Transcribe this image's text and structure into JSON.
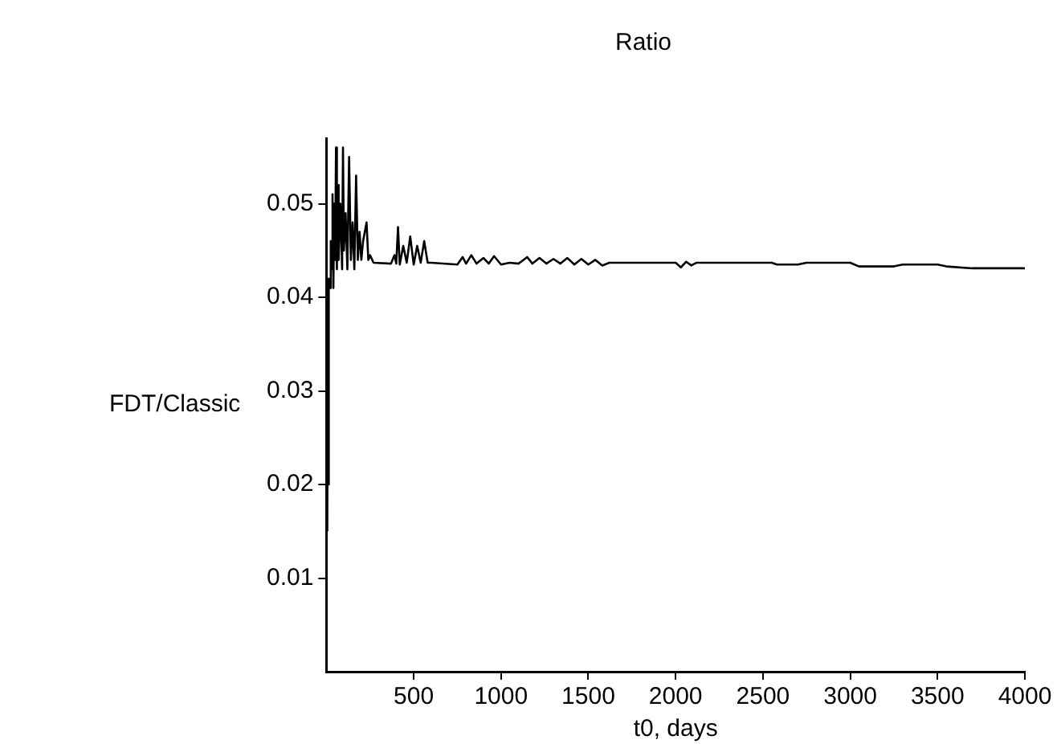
{
  "chart_data": {
    "type": "line",
    "title": "Ratio",
    "xlabel": "t0, days",
    "ylabel": "FDT/Classic",
    "xlim": [
      0,
      4000
    ],
    "xticks": [
      500,
      1000,
      1500,
      2000,
      2500,
      3000,
      3500,
      4000
    ],
    "ylim": [
      0,
      0.057
    ],
    "yticks": [
      0.01,
      0.02,
      0.03,
      0.04,
      0.05
    ],
    "grid": false,
    "legend": false,
    "marker": "none",
    "line_style": "solid",
    "series": [
      {
        "color": "#000000",
        "x": [
          5,
          8,
          12,
          15,
          20,
          25,
          30,
          35,
          40,
          45,
          50,
          55,
          60,
          65,
          70,
          80,
          90,
          95,
          100,
          110,
          120,
          130,
          140,
          150,
          160,
          170,
          180,
          190,
          200,
          210,
          230,
          240,
          250,
          270,
          370,
          390,
          400,
          410,
          420,
          440,
          460,
          480,
          500,
          520,
          540,
          560,
          580,
          600,
          750,
          780,
          800,
          830,
          860,
          900,
          930,
          960,
          1000,
          1050,
          1100,
          1150,
          1180,
          1220,
          1260,
          1300,
          1340,
          1380,
          1420,
          1460,
          1500,
          1540,
          1580,
          1620,
          1700,
          2000,
          2030,
          2060,
          2090,
          2120,
          2550,
          2580,
          2700,
          2750,
          3000,
          3050,
          3250,
          3300,
          3500,
          3550,
          3700,
          4000
        ],
        "values": [
          0.015,
          0.04,
          0.02,
          0.042,
          0.041,
          0.046,
          0.043,
          0.051,
          0.041,
          0.05,
          0.044,
          0.056,
          0.043,
          0.052,
          0.044,
          0.05,
          0.043,
          0.056,
          0.045,
          0.049,
          0.043,
          0.055,
          0.044,
          0.048,
          0.043,
          0.053,
          0.044,
          0.047,
          0.044,
          0.046,
          0.048,
          0.044,
          0.0445,
          0.0437,
          0.0436,
          0.0445,
          0.0436,
          0.0475,
          0.0435,
          0.0455,
          0.0437,
          0.0465,
          0.0435,
          0.0455,
          0.0437,
          0.046,
          0.0437,
          0.0437,
          0.0435,
          0.0443,
          0.0436,
          0.0445,
          0.0436,
          0.0442,
          0.0436,
          0.0444,
          0.0435,
          0.0437,
          0.0436,
          0.0443,
          0.0436,
          0.0442,
          0.0436,
          0.0441,
          0.0436,
          0.0442,
          0.0435,
          0.0441,
          0.0435,
          0.044,
          0.0434,
          0.0437,
          0.0437,
          0.0437,
          0.0432,
          0.0438,
          0.0434,
          0.0437,
          0.0437,
          0.0435,
          0.0435,
          0.0437,
          0.0437,
          0.0433,
          0.0433,
          0.0435,
          0.0435,
          0.0433,
          0.0431,
          0.0431
        ]
      }
    ]
  }
}
